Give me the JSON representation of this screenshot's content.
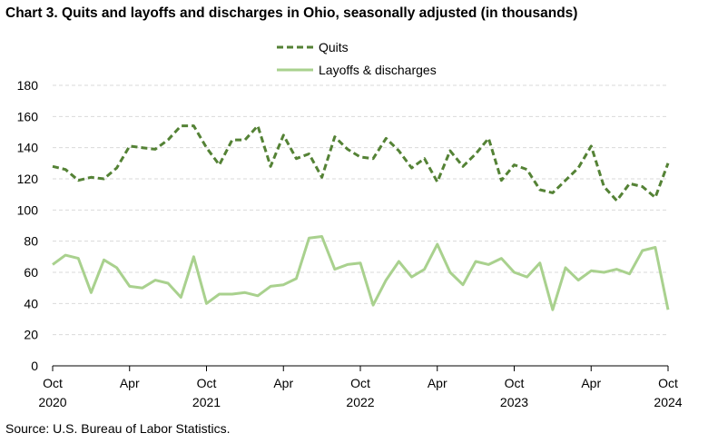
{
  "chart_data": {
    "type": "line",
    "title": "Chart 3. Quits and layoffs and discharges in Ohio, seasonally adjusted (in thousands)",
    "source": "Source: U.S. Bureau of Labor Statistics.",
    "xlabel": "",
    "ylabel": "",
    "ylim": [
      0,
      180
    ],
    "yticks": [
      0,
      20,
      40,
      60,
      80,
      100,
      120,
      140,
      160,
      180
    ],
    "grid": true,
    "legend_position": "top-center",
    "x": [
      "2020-10",
      "2020-11",
      "2020-12",
      "2021-01",
      "2021-02",
      "2021-03",
      "2021-04",
      "2021-05",
      "2021-06",
      "2021-07",
      "2021-08",
      "2021-09",
      "2021-10",
      "2021-11",
      "2021-12",
      "2022-01",
      "2022-02",
      "2022-03",
      "2022-04",
      "2022-05",
      "2022-06",
      "2022-07",
      "2022-08",
      "2022-09",
      "2022-10",
      "2022-11",
      "2022-12",
      "2023-01",
      "2023-02",
      "2023-03",
      "2023-04",
      "2023-05",
      "2023-06",
      "2023-07",
      "2023-08",
      "2023-09",
      "2023-10",
      "2023-11",
      "2023-12",
      "2024-01",
      "2024-02",
      "2024-03",
      "2024-04",
      "2024-05",
      "2024-06",
      "2024-07",
      "2024-08",
      "2024-09",
      "2024-10"
    ],
    "xtick_labels": [
      {
        "index": 0,
        "label": "Oct",
        "year": "2020"
      },
      {
        "index": 6,
        "label": "Apr",
        "year": ""
      },
      {
        "index": 12,
        "label": "Oct",
        "year": "2021"
      },
      {
        "index": 18,
        "label": "Apr",
        "year": ""
      },
      {
        "index": 24,
        "label": "Oct",
        "year": "2022"
      },
      {
        "index": 30,
        "label": "Apr",
        "year": ""
      },
      {
        "index": 36,
        "label": "Oct",
        "year": "2023"
      },
      {
        "index": 42,
        "label": "Apr",
        "year": ""
      },
      {
        "index": 48,
        "label": "Oct",
        "year": "2024"
      }
    ],
    "series": [
      {
        "name": "Quits",
        "color": "#548235",
        "style": "dashed",
        "values": [
          128,
          126,
          119,
          121,
          120,
          127,
          141,
          140,
          139,
          145,
          154,
          154,
          140,
          129,
          145,
          145,
          154,
          128,
          148,
          133,
          136,
          121,
          147,
          139,
          134,
          133,
          146,
          138,
          127,
          133,
          118,
          138,
          128,
          136,
          146,
          119,
          129,
          126,
          113,
          111,
          119,
          127,
          141,
          115,
          106,
          117,
          115,
          108,
          130
        ]
      },
      {
        "name": "Layoffs & discharges",
        "color": "#a9d18e",
        "style": "solid",
        "values": [
          65,
          71,
          69,
          47,
          68,
          63,
          51,
          50,
          55,
          53,
          44,
          70,
          40,
          46,
          46,
          47,
          45,
          51,
          52,
          56,
          82,
          83,
          62,
          65,
          66,
          39,
          55,
          67,
          57,
          62,
          78,
          60,
          52,
          67,
          65,
          69,
          60,
          57,
          66,
          36,
          63,
          55,
          61,
          60,
          62,
          59,
          74,
          76,
          36
        ]
      }
    ]
  }
}
